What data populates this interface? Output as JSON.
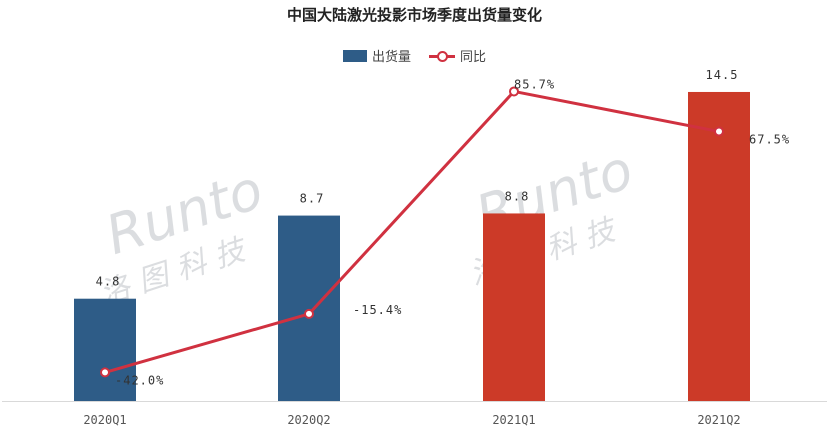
{
  "chart_data": {
    "type": "bar",
    "title": "中国大陆激光投影市场季度出货量变化",
    "categories": [
      "2020Q1",
      "2020Q2",
      "2021Q1",
      "2021Q2"
    ],
    "series": [
      {
        "name": "出货量",
        "type": "bar",
        "values": [
          4.8,
          8.7,
          8.8,
          14.5
        ],
        "value_labels": [
          "4.8",
          "8.7",
          "8.8",
          "14.5"
        ],
        "colors": [
          "#2e5c87",
          "#2e5c87",
          "#cc3a28",
          "#cc3a28"
        ]
      },
      {
        "name": "同比",
        "type": "line",
        "values": [
          -42.0,
          -15.4,
          85.7,
          67.5
        ],
        "value_labels": [
          "-42.0%",
          "-15.4%",
          "85.7%",
          "67.5%"
        ],
        "color": "#d03140"
      }
    ],
    "bar_range": [
      0,
      16
    ],
    "line_range": [
      -55,
      100
    ],
    "grid": false,
    "legend": "top-center"
  },
  "watermark": {
    "text": "Runto",
    "subtext": "洛图科技"
  }
}
